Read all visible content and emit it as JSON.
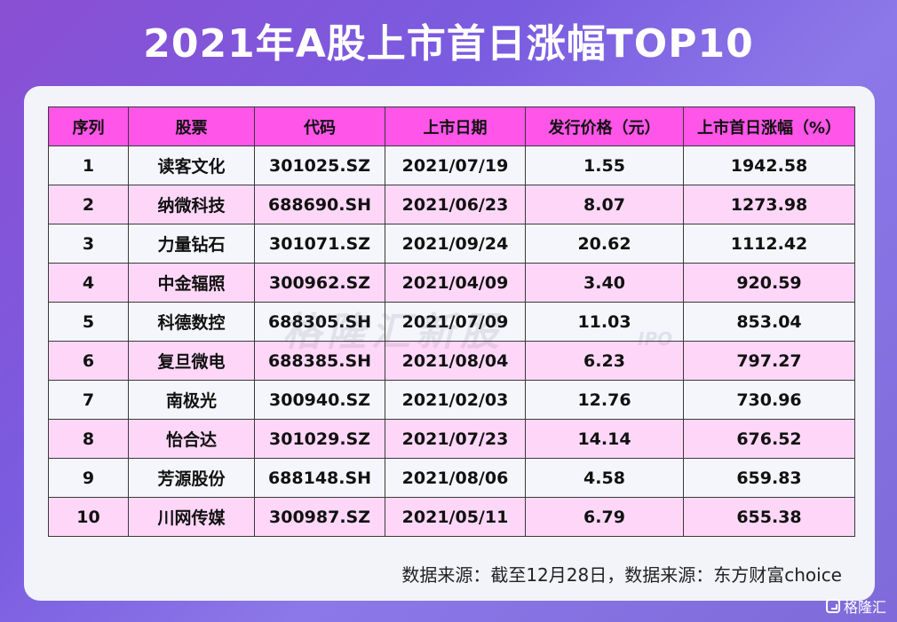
{
  "title": "2021年A股上市首日涨幅TOP10",
  "table": {
    "headers": [
      "序列",
      "股票",
      "代码",
      "上市日期",
      "发行价格（元）",
      "上市首日涨幅（%）"
    ],
    "rows": [
      [
        "1",
        "读客文化",
        "301025.SZ",
        "2021/07/19",
        "1.55",
        "1942.58"
      ],
      [
        "2",
        "纳微科技",
        "688690.SH",
        "2021/06/23",
        "8.07",
        "1273.98"
      ],
      [
        "3",
        "力量钻石",
        "301071.SZ",
        "2021/09/24",
        "20.62",
        "1112.42"
      ],
      [
        "4",
        "中金辐照",
        "300962.SZ",
        "2021/04/09",
        "3.40",
        "920.59"
      ],
      [
        "5",
        "科德数控",
        "688305.SH",
        "2021/07/09",
        "11.03",
        "853.04"
      ],
      [
        "6",
        "复旦微电",
        "688385.SH",
        "2021/08/04",
        "6.23",
        "797.27"
      ],
      [
        "7",
        "南极光",
        "300940.SZ",
        "2021/02/03",
        "12.76",
        "730.96"
      ],
      [
        "8",
        "怡合达",
        "301029.SZ",
        "2021/07/23",
        "14.14",
        "676.52"
      ],
      [
        "9",
        "芳源股份",
        "688148.SH",
        "2021/08/06",
        "4.58",
        "659.83"
      ],
      [
        "10",
        "川网传媒",
        "300987.SZ",
        "2021/05/11",
        "6.79",
        "655.38"
      ]
    ]
  },
  "watermark": {
    "text": "格隆汇新股",
    "sub": "IPO"
  },
  "source": "数据来源：截至12月28日，数据来源：东方财富choice",
  "brand": {
    "name": "格隆汇",
    "icon": "gelonghui-logo-icon"
  },
  "colors": {
    "header_bg": "#ff55e8",
    "row_alt_bg": "#fed7f8",
    "card_bg": "#f2f4fa",
    "background": "#8a4fd3"
  }
}
